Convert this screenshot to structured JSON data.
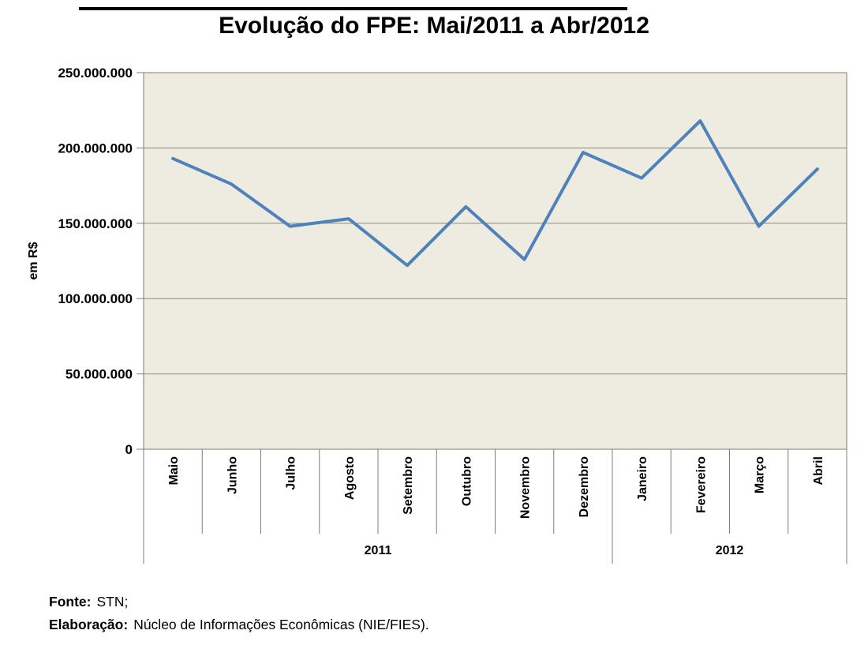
{
  "chart_data": {
    "type": "line",
    "title": "Evolução do FPE: Mai/2011 a Abr/2012",
    "xlabel": "",
    "ylabel": "em R$",
    "categories": [
      "Maio",
      "Junho",
      "Julho",
      "Agosto",
      "Setembro",
      "Outubro",
      "Novembro",
      "Dezembro",
      "Janeiro",
      "Fevereiro",
      "Março",
      "Abril"
    ],
    "values": [
      193000000,
      176000000,
      148000000,
      153000000,
      122000000,
      161000000,
      126000000,
      197000000,
      180000000,
      218000000,
      148000000,
      186000000
    ],
    "year_groups": [
      {
        "label": "2011",
        "span": 8
      },
      {
        "label": "2012",
        "span": 4
      }
    ],
    "ylim": [
      0,
      250000000
    ],
    "ytick_step": 50000000,
    "ytick_labels": [
      "0",
      "50.000.000",
      "100.000.000",
      "150.000.000",
      "200.000.000",
      "250.000.000"
    ],
    "grid": true,
    "legend": "none",
    "line_color": "#4F81BD",
    "plot_bg": "#EEECE1",
    "grid_color": "#8A887C",
    "axis_color": "#7F7D74"
  },
  "footer": {
    "fonte_label": "Fonte:",
    "fonte_value": "STN;",
    "elaboracao_label": "Elaboração:",
    "elaboracao_value": "Núcleo de Informações Econômicas (NIE/FIES)."
  }
}
